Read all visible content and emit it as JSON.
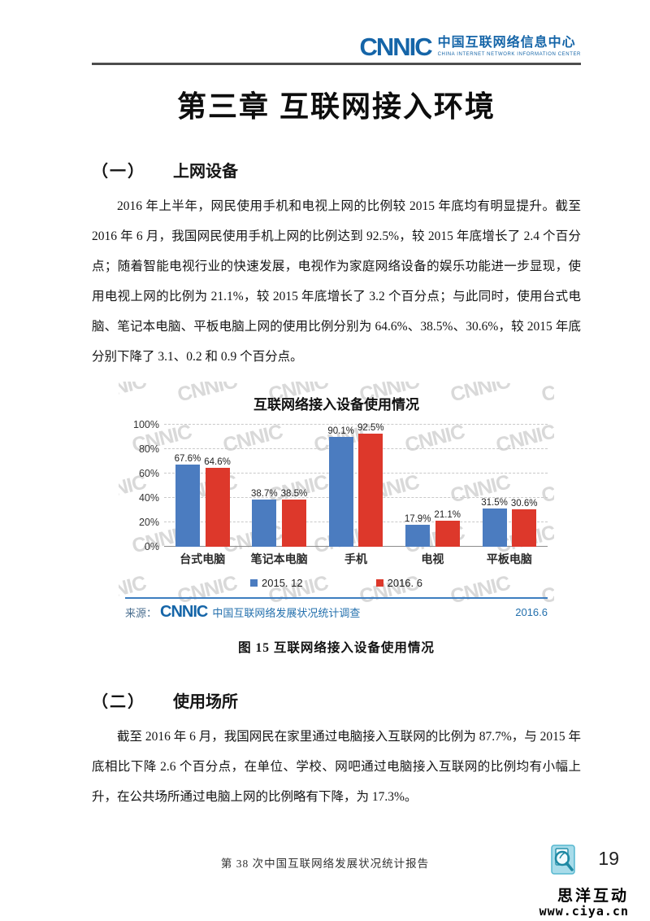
{
  "header": {
    "logo_word": "CNNIC",
    "logo_cn": "中国互联网络信息中心",
    "logo_en": "CHINA INTERNET NETWORK INFORMATION CENTER"
  },
  "chapter_title": "第三章 互联网接入环境",
  "section1": {
    "num": "（一）",
    "label": "上网设备",
    "paragraph": "2016 年上半年，网民使用手机和电视上网的比例较 2015 年底均有明显提升。截至 2016 年 6 月，我国网民使用手机上网的比例达到 92.5%，较 2015 年底增长了 2.4 个百分点；随着智能电视行业的快速发展，电视作为家庭网络设备的娱乐功能进一步显现，使用电视上网的比例为 21.1%，较 2015 年底增长了 3.2 个百分点；与此同时，使用台式电脑、笔记本电脑、平板电脑上网的使用比例分别为 64.6%、38.5%、30.6%，较 2015 年底分别下降了 3.1、0.2 和 0.9 个百分点。"
  },
  "chart_data": {
    "type": "bar",
    "title": "互联网络接入设备使用情况",
    "categories": [
      "台式电脑",
      "笔记本电脑",
      "手机",
      "电视",
      "平板电脑"
    ],
    "series": [
      {
        "name": "2015. 12",
        "color": "#4b7cc0",
        "values": [
          67.6,
          38.7,
          90.1,
          17.9,
          31.5
        ]
      },
      {
        "name": "2016. 6",
        "color": "#dd382b",
        "values": [
          64.6,
          38.5,
          92.5,
          21.1,
          30.6
        ]
      }
    ],
    "value_suffix": "%",
    "ylim": [
      0,
      100
    ],
    "ytick_step": 20,
    "grid": "dashed-horizontal",
    "legend_position": "bottom",
    "watermark": "CNNIC",
    "source_prefix": "来源：",
    "source_logo": "CNNIC",
    "source_text": "中国互联网络发展状况统计调查",
    "source_date": "2016.6"
  },
  "figure_caption": "图 15 互联网络接入设备使用情况",
  "section2": {
    "num": "（二）",
    "label": "使用场所",
    "paragraph": "截至 2016 年 6 月，我国网民在家里通过电脑接入互联网的比例为 87.7%，与 2015 年底相比下降 2.6 个百分点，在单位、学校、网吧通过电脑接入互联网的比例均有小幅上升，在公共场所通过电脑上网的比例略有下降，为 17.3%。"
  },
  "footer": {
    "report_title": "第 38 次中国互联网络发展状况统计报告",
    "page_number": "19"
  },
  "site_watermark": {
    "line1": "思洋互动",
    "line2": "www.ciya.cn"
  }
}
